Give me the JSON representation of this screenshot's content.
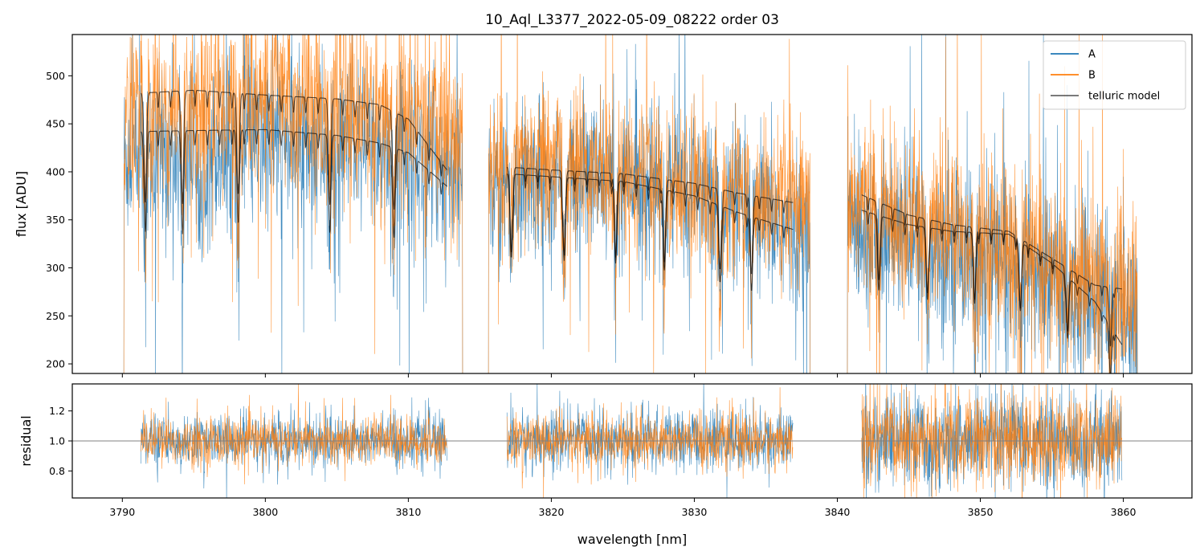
{
  "chart_data": {
    "type": "line",
    "title": "10_Aql_L3377_2022-05-09_08222  order 03",
    "xlabel": "wavelength [nm]",
    "xlim": [
      3786.5,
      3864.8
    ],
    "xticks": [
      "3790",
      "3800",
      "3810",
      "3820",
      "3830",
      "3840",
      "3850",
      "3860"
    ],
    "colors": {
      "A": "#1f77b4",
      "B": "#ff7f0e",
      "telluric": "#000000",
      "residual_ref": "#808080"
    },
    "legend": {
      "placement": "top-right",
      "entries": [
        "A",
        "B",
        "telluric model"
      ]
    },
    "panels": [
      {
        "name": "flux",
        "ylabel": "flux [ADU]",
        "ylim": [
          190,
          543
        ],
        "yticks": [
          "200",
          "250",
          "300",
          "350",
          "400",
          "450",
          "500"
        ],
        "segments": [
          {
            "x": [
              3790.1,
              3813.8
            ],
            "model_x": [
              3791.3,
              3812.7
            ],
            "series": [
              {
                "name": "A",
                "continuum": [
                  [
                    3790.1,
                    415
                  ],
                  [
                    3800,
                    430
                  ],
                  [
                    3810,
                    420
                  ],
                  [
                    3813.8,
                    400
                  ]
                ],
                "noise": 45,
                "dips": [
                  3791.6,
                  3794.2,
                  3798.1,
                  3804.5,
                  3809.0
                ]
              },
              {
                "name": "B",
                "continuum": [
                  [
                    3790.1,
                    455
                  ],
                  [
                    3800,
                    480
                  ],
                  [
                    3810,
                    455
                  ],
                  [
                    3813.8,
                    435
                  ]
                ],
                "noise": 50,
                "dips": [
                  3791.6,
                  3794.2,
                  3798.1,
                  3804.5,
                  3809.0
                ]
              }
            ],
            "telluric": [
              {
                "name": "B",
                "points": [
                  [
                    3791.3,
                    482
                  ],
                  [
                    3795,
                    485
                  ],
                  [
                    3800,
                    480
                  ],
                  [
                    3805,
                    476
                  ],
                  [
                    3808,
                    470
                  ],
                  [
                    3810,
                    455
                  ],
                  [
                    3812.7,
                    402
                  ]
                ]
              },
              {
                "name": "A",
                "points": [
                  [
                    3791.3,
                    442
                  ],
                  [
                    3795,
                    443
                  ],
                  [
                    3800,
                    444
                  ],
                  [
                    3805,
                    438
                  ],
                  [
                    3808,
                    430
                  ],
                  [
                    3810,
                    420
                  ],
                  [
                    3812.7,
                    385
                  ]
                ]
              }
            ]
          },
          {
            "x": [
              3815.6,
              3838.1
            ],
            "model_x": [
              3816.9,
              3836.9
            ],
            "series": [
              {
                "name": "A",
                "continuum": [
                  [
                    3815.6,
                    390
                  ],
                  [
                    3820,
                    395
                  ],
                  [
                    3825,
                    395
                  ],
                  [
                    3830,
                    380
                  ],
                  [
                    3835,
                    350
                  ],
                  [
                    3838.1,
                    330
                  ]
                ],
                "noise": 40,
                "dips": [
                  3817.2,
                  3820.9,
                  3824.5,
                  3827.9,
                  3831.8,
                  3834.0
                ]
              },
              {
                "name": "B",
                "continuum": [
                  [
                    3815.6,
                    400
                  ],
                  [
                    3820,
                    405
                  ],
                  [
                    3825,
                    400
                  ],
                  [
                    3830,
                    385
                  ],
                  [
                    3835,
                    365
                  ],
                  [
                    3838.1,
                    355
                  ]
                ],
                "noise": 40,
                "dips": [
                  3817.2,
                  3820.9,
                  3824.5,
                  3827.9,
                  3831.8,
                  3834.0
                ]
              }
            ],
            "telluric": [
              {
                "name": "B",
                "points": [
                  [
                    3816.9,
                    405
                  ],
                  [
                    3820,
                    402
                  ],
                  [
                    3825,
                    398
                  ],
                  [
                    3830,
                    388
                  ],
                  [
                    3833,
                    378
                  ],
                  [
                    3836.9,
                    368
                  ]
                ]
              },
              {
                "name": "A",
                "points": [
                  [
                    3816.9,
                    398
                  ],
                  [
                    3820,
                    395
                  ],
                  [
                    3825,
                    390
                  ],
                  [
                    3830,
                    375
                  ],
                  [
                    3833,
                    358
                  ],
                  [
                    3836.9,
                    340
                  ]
                ]
              }
            ]
          },
          {
            "x": [
              3840.7,
              3861.0
            ],
            "model_x": [
              3841.7,
              3859.9
            ],
            "series": [
              {
                "name": "A",
                "continuum": [
                  [
                    3840.7,
                    350
                  ],
                  [
                    3845,
                    330
                  ],
                  [
                    3850,
                    315
                  ],
                  [
                    3855,
                    290
                  ],
                  [
                    3858,
                    270
                  ],
                  [
                    3861.0,
                    250
                  ]
                ],
                "noise": 45,
                "dips": [
                  3842.9,
                  3846.3,
                  3849.6,
                  3852.8,
                  3856.1,
                  3859.1
                ]
              },
              {
                "name": "B",
                "continuum": [
                  [
                    3840.7,
                    370
                  ],
                  [
                    3845,
                    350
                  ],
                  [
                    3850,
                    330
                  ],
                  [
                    3855,
                    300
                  ],
                  [
                    3858,
                    285
                  ],
                  [
                    3861.0,
                    270
                  ]
                ],
                "noise": 45,
                "dips": [
                  3842.9,
                  3846.3,
                  3849.6,
                  3852.8,
                  3856.1,
                  3859.1
                ]
              }
            ],
            "telluric": [
              {
                "name": "B",
                "points": [
                  [
                    3841.7,
                    376
                  ],
                  [
                    3845,
                    355
                  ],
                  [
                    3848,
                    345
                  ],
                  [
                    3852,
                    338
                  ],
                  [
                    3855,
                    310
                  ],
                  [
                    3858,
                    282
                  ],
                  [
                    3859.9,
                    278
                  ]
                ]
              },
              {
                "name": "A",
                "points": [
                  [
                    3841.7,
                    360
                  ],
                  [
                    3845,
                    345
                  ],
                  [
                    3848,
                    338
                  ],
                  [
                    3852,
                    335
                  ],
                  [
                    3855,
                    305
                  ],
                  [
                    3858,
                    265
                  ],
                  [
                    3859.9,
                    220
                  ]
                ]
              }
            ]
          }
        ]
      },
      {
        "name": "residual",
        "ylabel": "residual",
        "ylim": [
          0.62,
          1.38
        ],
        "yticks": [
          "0.8",
          "1.0",
          "1.2"
        ],
        "reference": 1.0,
        "segments": [
          {
            "x": [
              3791.3,
              3812.7
            ],
            "A_spread": 0.09,
            "B_spread": 0.08
          },
          {
            "x": [
              3816.9,
              3836.9
            ],
            "A_spread": 0.1,
            "B_spread": 0.09
          },
          {
            "x": [
              3841.7,
              3859.9
            ],
            "A_spread": 0.16,
            "B_spread": 0.15
          }
        ]
      }
    ]
  }
}
